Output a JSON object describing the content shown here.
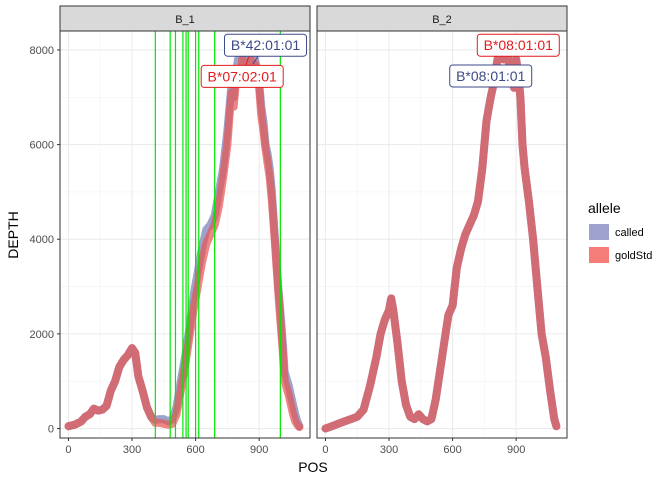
{
  "chart_data": {
    "type": "line",
    "xlabel": "POS",
    "ylabel": "DEPTH",
    "xlim": [
      -40,
      1140
    ],
    "ylim": [
      -200,
      8400
    ],
    "xticks": [
      0,
      300,
      600,
      900
    ],
    "yticks": [
      0,
      2000,
      4000,
      6000,
      8000
    ],
    "grid": true,
    "legend": {
      "title": "allele",
      "position": "right",
      "entries": [
        {
          "name": "called",
          "color": "#9DA1CC"
        },
        {
          "name": "goldStd",
          "color": "#F47D78"
        }
      ]
    },
    "series_styles": {
      "called": {
        "color": "#8B93C3",
        "opacity": 0.85
      },
      "goldStd": {
        "color": "#E8524F",
        "opacity": 0.7
      }
    },
    "panels": [
      {
        "name": "B_1",
        "vlines": [
          410,
          480,
          505,
          540,
          555,
          565,
          600,
          615,
          690,
          1000
        ],
        "vline_color": "#00E600",
        "series": [
          {
            "name": "called",
            "x": [
              0,
              30,
              60,
              80,
              100,
              120,
              140,
              160,
              180,
              200,
              220,
              240,
              260,
              280,
              300,
              315,
              330,
              350,
              370,
              390,
              410,
              430,
              450,
              470,
              490,
              510,
              530,
              550,
              570,
              590,
              610,
              630,
              650,
              670,
              690,
              710,
              730,
              750,
              760,
              770,
              780,
              790,
              800,
              810,
              820,
              830,
              840,
              850,
              860,
              870,
              880,
              890,
              900,
              910,
              920,
              930,
              940,
              950,
              960,
              975,
              990,
              1000,
              1010,
              1020,
              1040,
              1050,
              1060,
              1070,
              1080,
              1090
            ],
            "y": [
              50,
              80,
              150,
              250,
              300,
              420,
              380,
              400,
              480,
              800,
              1000,
              1300,
              1450,
              1550,
              1700,
              1600,
              1100,
              800,
              450,
              250,
              180,
              200,
              200,
              150,
              200,
              450,
              1000,
              1500,
              2100,
              2800,
              3300,
              3800,
              4200,
              4300,
              4500,
              5000,
              5500,
              6300,
              6800,
              7300,
              7000,
              7500,
              7800,
              7600,
              7900,
              7700,
              7800,
              7800,
              7900,
              7700,
              7800,
              7600,
              7300,
              6800,
              6500,
              6000,
              5800,
              5500,
              5000,
              4000,
              3000,
              2500,
              1900,
              1200,
              900,
              700,
              500,
              300,
              150,
              50
            ]
          },
          {
            "name": "goldStd",
            "x": [
              0,
              30,
              60,
              80,
              100,
              120,
              140,
              160,
              180,
              200,
              220,
              240,
              260,
              280,
              300,
              315,
              330,
              350,
              370,
              390,
              410,
              430,
              450,
              470,
              490,
              510,
              530,
              550,
              570,
              590,
              610,
              630,
              650,
              670,
              690,
              710,
              730,
              750,
              760,
              770,
              780,
              790,
              800,
              810,
              820,
              830,
              840,
              850,
              860,
              870,
              880,
              890,
              900,
              910,
              920,
              930,
              940,
              950,
              960,
              975,
              990,
              1000,
              1010,
              1020,
              1040,
              1050,
              1060,
              1070,
              1080,
              1090
            ],
            "y": [
              50,
              80,
              150,
              250,
              300,
              420,
              380,
              400,
              480,
              800,
              1000,
              1300,
              1450,
              1550,
              1700,
              1600,
              1100,
              800,
              450,
              250,
              120,
              120,
              100,
              80,
              100,
              300,
              800,
              1300,
              1900,
              2500,
              3000,
              3500,
              3900,
              4100,
              4300,
              4700,
              5300,
              6000,
              6600,
              7100,
              6800,
              7300,
              7600,
              7300,
              7800,
              7500,
              7700,
              7600,
              7800,
              7600,
              7700,
              7400,
              7200,
              6600,
              6300,
              5900,
              5600,
              5300,
              4800,
              3900,
              2900,
              2300,
              1700,
              1000,
              700,
              500,
              300,
              150,
              80,
              30
            ]
          }
        ],
        "annotations": [
          {
            "text": "B*42:01:01",
            "series": "called",
            "x": 930,
            "y": 8100,
            "tx": 870,
            "ty": 7700
          },
          {
            "text": "B*07:02:01",
            "series": "goldStd",
            "x": 820,
            "y": 7440,
            "tx": 850,
            "ty": 7850
          }
        ]
      },
      {
        "name": "B_2",
        "vlines": [],
        "series": [
          {
            "name": "called",
            "x": [
              0,
              30,
              60,
              90,
              120,
              150,
              180,
              210,
              240,
              260,
              280,
              300,
              310,
              320,
              340,
              360,
              380,
              400,
              420,
              440,
              460,
              480,
              500,
              520,
              540,
              560,
              580,
              600,
              610,
              620,
              640,
              660,
              670,
              680,
              700,
              720,
              740,
              760,
              780,
              790,
              800,
              820,
              840,
              860,
              870,
              880,
              890,
              900,
              910,
              920,
              930,
              940,
              960,
              980,
              1000,
              1020,
              1040,
              1060,
              1080,
              1090
            ],
            "y": [
              0,
              50,
              100,
              150,
              200,
              250,
              400,
              900,
              1500,
              2000,
              2300,
              2500,
              2750,
              2500,
              1800,
              1000,
              500,
              250,
              200,
              300,
              200,
              150,
              200,
              600,
              1200,
              1800,
              2400,
              2600,
              3000,
              3400,
              3800,
              4100,
              4200,
              4300,
              4500,
              4800,
              5500,
              6500,
              7000,
              7200,
              7500,
              8000,
              7800,
              8000,
              7500,
              7700,
              7200,
              7800,
              7500,
              7000,
              6000,
              5500,
              4800,
              4000,
              3000,
              2000,
              1500,
              800,
              200,
              50
            ]
          },
          {
            "name": "goldStd",
            "x": [
              0,
              30,
              60,
              90,
              120,
              150,
              180,
              210,
              240,
              260,
              280,
              300,
              310,
              320,
              340,
              360,
              380,
              400,
              420,
              440,
              460,
              480,
              500,
              520,
              540,
              560,
              580,
              600,
              610,
              620,
              640,
              660,
              670,
              680,
              700,
              720,
              740,
              760,
              780,
              790,
              800,
              820,
              840,
              860,
              870,
              880,
              890,
              900,
              910,
              920,
              930,
              940,
              960,
              980,
              1000,
              1020,
              1040,
              1060,
              1080,
              1090
            ],
            "y": [
              0,
              50,
              100,
              150,
              200,
              250,
              400,
              900,
              1500,
              2000,
              2300,
              2500,
              2750,
              2500,
              1800,
              1000,
              500,
              250,
              200,
              300,
              200,
              150,
              200,
              600,
              1200,
              1800,
              2400,
              2600,
              3000,
              3400,
              3800,
              4100,
              4200,
              4300,
              4500,
              4800,
              5500,
              6500,
              7000,
              7200,
              7500,
              8000,
              7800,
              8000,
              7500,
              7700,
              7200,
              7800,
              7500,
              7000,
              6000,
              5500,
              4800,
              4000,
              3000,
              2000,
              1500,
              800,
              200,
              50
            ]
          }
        ],
        "annotations": [
          {
            "text": "B*08:01:01",
            "series": "goldStd",
            "x": 910,
            "y": 8100,
            "tx": 0,
            "ty": 0
          },
          {
            "text": "B*08:01:01",
            "series": "called",
            "x": 780,
            "y": 7450,
            "tx": 0,
            "ty": 0
          }
        ]
      }
    ]
  }
}
